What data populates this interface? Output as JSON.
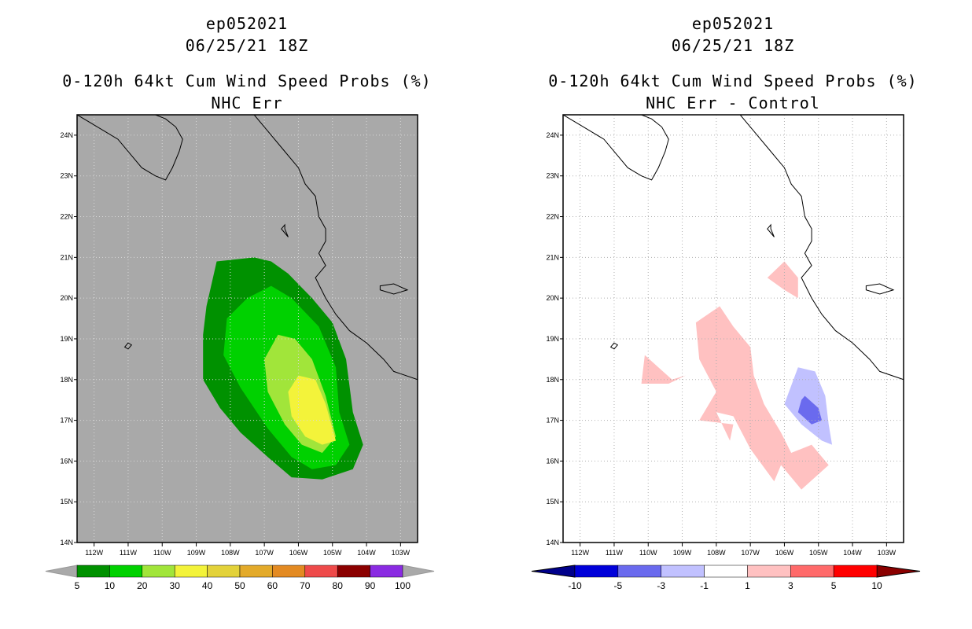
{
  "left_panel": {
    "storm_id": "ep052021",
    "datetime": "06/25/21 18Z",
    "product": "0-120h 64kt Cum Wind Speed Probs (%)",
    "subtitle": "NHC Err"
  },
  "right_panel": {
    "storm_id": "ep052021",
    "datetime": "06/25/21 18Z",
    "product": "0-120h 64kt Cum Wind Speed Probs (%)",
    "subtitle": "NHC Err - Control"
  },
  "colors": {
    "land_background": "#a9a9a9",
    "diff_background": "#ffffff",
    "prob_5": "#009100",
    "prob_10": "#00d100",
    "prob_20": "#a1e53a",
    "prob_30": "#f3f33a",
    "diff_pos_1": "#ffc1c1",
    "diff_neg_1": "#c1c1ff",
    "diff_neg_3": "#6a6aee"
  },
  "chart_data": [
    {
      "type": "heatmap",
      "title": "NHC Err",
      "x_ticks": [
        "112W",
        "111W",
        "110W",
        "109W",
        "108W",
        "107W",
        "106W",
        "105W",
        "104W",
        "103W"
      ],
      "y_ticks": [
        "14N",
        "15N",
        "16N",
        "17N",
        "18N",
        "19N",
        "20N",
        "21N",
        "22N",
        "23N",
        "24N"
      ],
      "xlim": [
        -112.5,
        -102.5
      ],
      "ylim": [
        14,
        24.5
      ],
      "grid": true,
      "colorbar": {
        "labels": [
          "5",
          "10",
          "20",
          "30",
          "40",
          "50",
          "60",
          "70",
          "80",
          "90",
          "100"
        ],
        "colors": [
          "#009100",
          "#00d100",
          "#a1e53a",
          "#f3f33a",
          "#e3d23a",
          "#e3aa2a",
          "#e38a22",
          "#ee4a4a",
          "#8b0000",
          "#8a2be2"
        ]
      },
      "contours": [
        {
          "level": "5-10",
          "color_key": "prob_5",
          "points": [
            [
              -108.4,
              20.9
            ],
            [
              -107.3,
              21.0
            ],
            [
              -106.8,
              20.9
            ],
            [
              -106.3,
              20.6
            ],
            [
              -105.6,
              20.0
            ],
            [
              -105.0,
              19.4
            ],
            [
              -104.6,
              18.5
            ],
            [
              -104.4,
              17.2
            ],
            [
              -104.1,
              16.4
            ],
            [
              -104.4,
              15.8
            ],
            [
              -105.3,
              15.55
            ],
            [
              -106.2,
              15.6
            ],
            [
              -106.9,
              16.1
            ],
            [
              -107.7,
              16.7
            ],
            [
              -108.3,
              17.3
            ],
            [
              -108.8,
              18.0
            ],
            [
              -108.8,
              19.1
            ],
            [
              -108.7,
              19.8
            ]
          ]
        },
        {
          "level": "10-20",
          "color_key": "prob_10",
          "points": [
            [
              -107.5,
              20.0
            ],
            [
              -106.8,
              20.3
            ],
            [
              -106.2,
              20.0
            ],
            [
              -105.4,
              19.3
            ],
            [
              -104.9,
              18.3
            ],
            [
              -104.8,
              17.2
            ],
            [
              -104.5,
              16.4
            ],
            [
              -104.9,
              15.9
            ],
            [
              -105.6,
              15.8
            ],
            [
              -106.2,
              16.1
            ],
            [
              -106.9,
              16.8
            ],
            [
              -107.7,
              17.8
            ],
            [
              -108.2,
              18.6
            ],
            [
              -108.1,
              19.5
            ]
          ]
        },
        {
          "level": "20-30",
          "color_key": "prob_20",
          "points": [
            [
              -106.6,
              19.1
            ],
            [
              -106.1,
              19.0
            ],
            [
              -105.6,
              18.5
            ],
            [
              -105.2,
              17.6
            ],
            [
              -104.9,
              16.6
            ],
            [
              -105.3,
              16.2
            ],
            [
              -105.9,
              16.4
            ],
            [
              -106.4,
              16.9
            ],
            [
              -106.9,
              17.7
            ],
            [
              -107.0,
              18.5
            ]
          ]
        },
        {
          "level": "30-40",
          "color_key": "prob_30",
          "points": [
            [
              -106.0,
              18.1
            ],
            [
              -105.5,
              18.0
            ],
            [
              -105.2,
              17.4
            ],
            [
              -104.9,
              16.5
            ],
            [
              -105.3,
              16.4
            ],
            [
              -105.8,
              16.6
            ],
            [
              -106.2,
              17.1
            ],
            [
              -106.3,
              17.7
            ]
          ]
        }
      ]
    },
    {
      "type": "heatmap",
      "title": "NHC Err - Control",
      "x_ticks": [
        "112W",
        "111W",
        "110W",
        "109W",
        "108W",
        "107W",
        "106W",
        "105W",
        "104W",
        "103W"
      ],
      "y_ticks": [
        "14N",
        "15N",
        "16N",
        "17N",
        "18N",
        "19N",
        "20N",
        "21N",
        "22N",
        "23N",
        "24N"
      ],
      "xlim": [
        -112.5,
        -102.5
      ],
      "ylim": [
        14,
        24.5
      ],
      "grid": true,
      "colorbar": {
        "labels": [
          "-10",
          "-5",
          "-3",
          "-1",
          "1",
          "3",
          "5",
          "10"
        ],
        "colors": [
          "#0000d9",
          "#6a6aee",
          "#c1c1ff",
          "#ffffff",
          "#ffc1c1",
          "#ff6a6a",
          "#ff0000"
        ]
      },
      "contours": [
        {
          "level": "+1 to +3",
          "color_key": "diff_pos_1",
          "points": [
            [
              -106.0,
              20.9
            ],
            [
              -105.6,
              20.5
            ],
            [
              -105.6,
              20.0
            ],
            [
              -106.0,
              20.2
            ],
            [
              -106.5,
              20.5
            ]
          ]
        },
        {
          "level": "+1 to +3",
          "color_key": "diff_pos_1",
          "points": [
            [
              -107.9,
              19.8
            ],
            [
              -107.5,
              19.3
            ],
            [
              -107.0,
              18.8
            ],
            [
              -106.9,
              18.1
            ],
            [
              -106.6,
              17.4
            ],
            [
              -106.1,
              16.7
            ],
            [
              -105.8,
              16.2
            ],
            [
              -105.2,
              16.4
            ],
            [
              -104.7,
              15.9
            ],
            [
              -105.5,
              15.3
            ],
            [
              -106.1,
              15.9
            ],
            [
              -106.3,
              15.5
            ],
            [
              -107.0,
              16.3
            ],
            [
              -107.5,
              17.1
            ],
            [
              -108.0,
              17.2
            ],
            [
              -107.6,
              16.5
            ],
            [
              -107.5,
              16.9
            ],
            [
              -108.5,
              17.0
            ],
            [
              -108.0,
              17.7
            ],
            [
              -108.5,
              18.5
            ],
            [
              -108.6,
              19.4
            ]
          ]
        },
        {
          "level": "+1 to +3",
          "color_key": "diff_pos_1",
          "points": [
            [
              -110.1,
              18.6
            ],
            [
              -109.7,
              18.3
            ],
            [
              -109.3,
              18.0
            ],
            [
              -108.9,
              18.1
            ],
            [
              -109.4,
              17.9
            ],
            [
              -110.2,
              17.9
            ]
          ]
        },
        {
          "level": "-3 to -1",
          "color_key": "diff_neg_1",
          "points": [
            [
              -105.6,
              18.3
            ],
            [
              -105.1,
              18.2
            ],
            [
              -104.8,
              17.6
            ],
            [
              -104.7,
              16.9
            ],
            [
              -104.6,
              16.4
            ],
            [
              -104.9,
              16.5
            ],
            [
              -105.5,
              16.9
            ],
            [
              -106.0,
              17.4
            ]
          ]
        },
        {
          "level": "-5 to -3",
          "color_key": "diff_neg_3",
          "points": [
            [
              -105.4,
              17.6
            ],
            [
              -105.0,
              17.3
            ],
            [
              -104.9,
              17.0
            ],
            [
              -105.2,
              16.9
            ],
            [
              -105.6,
              17.2
            ],
            [
              -105.5,
              17.5
            ]
          ]
        }
      ]
    }
  ]
}
